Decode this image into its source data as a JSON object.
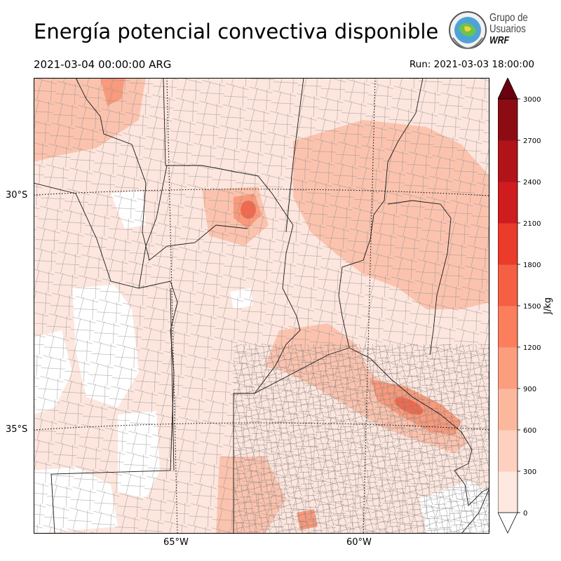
{
  "header": {
    "title": "Energía potencial convectiva disponible",
    "valid_time": "2021-03-04 00:00:00 ARG",
    "run_time": "Run: 2021-03-03 18:00:00"
  },
  "logo": {
    "line1": "Grupo de",
    "line2": "Usuarios",
    "line3": "WRF"
  },
  "axes": {
    "lat_labels": [
      "30°S",
      "35°S"
    ],
    "lon_labels": [
      "65°W",
      "60°W"
    ]
  },
  "colorbar": {
    "unit": "J/kg",
    "ticks": [
      "0",
      "300",
      "600",
      "900",
      "1200",
      "1500",
      "1800",
      "2100",
      "2400",
      "2700",
      "3000"
    ],
    "colors": [
      "#fee8e0",
      "#fdd0c0",
      "#fcb89d",
      "#fc9d7e",
      "#fb7f5d",
      "#f55f44",
      "#ea3b2b",
      "#cf1c1f",
      "#b01418",
      "#8d0c14",
      "#6b0010"
    ],
    "extend": "max"
  },
  "map": {
    "field": "CAPE",
    "palette": {
      "background": "#ffffff",
      "light": "#fde6de",
      "medium": "#fbc3ae",
      "strong": "#f89a7c",
      "hot": "#ef6a4f",
      "border_national": "#000000",
      "border_district": "#888888"
    }
  }
}
